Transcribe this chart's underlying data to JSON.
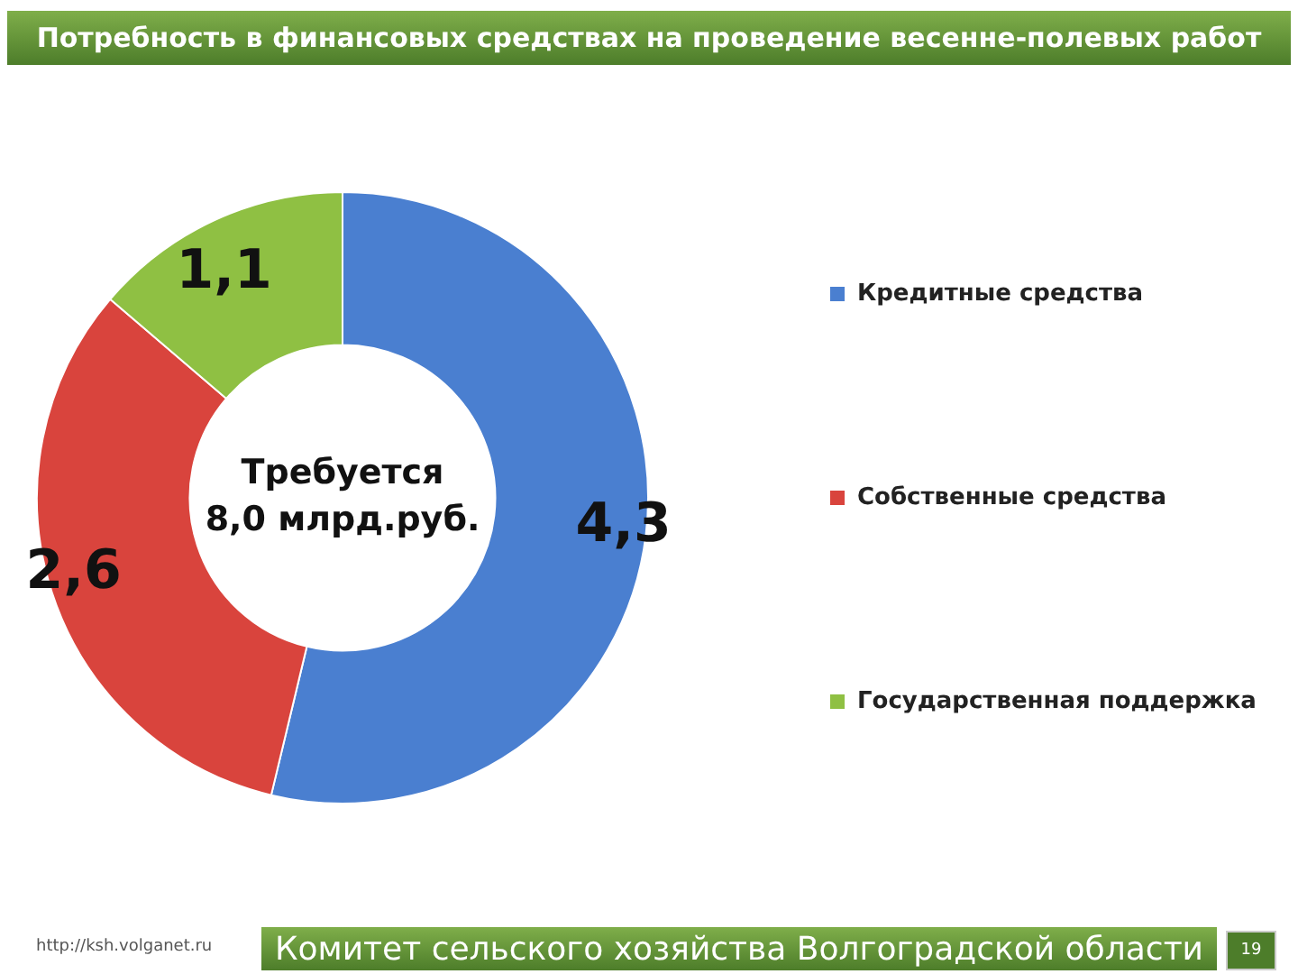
{
  "chart_data": {
    "type": "donut",
    "title": "Потребность в финансовых средствах на проведение весенне-полевых работ",
    "categories": [
      "Кредитные средства",
      "Собственные средства",
      "Государственная поддержка"
    ],
    "values": [
      4.3,
      2.6,
      1.1
    ],
    "value_labels": [
      "4,3",
      "2,6",
      "1,1"
    ],
    "colors": [
      "#4a7fd0",
      "#d9443d",
      "#8fc043"
    ],
    "legend": "right",
    "annotations": [
      "Требуется\n8,0 млрд.руб.",
      "Комитет сельского хозяйства Волгоградской области",
      "http://ksh.volganet.ru",
      "19"
    ]
  }
}
